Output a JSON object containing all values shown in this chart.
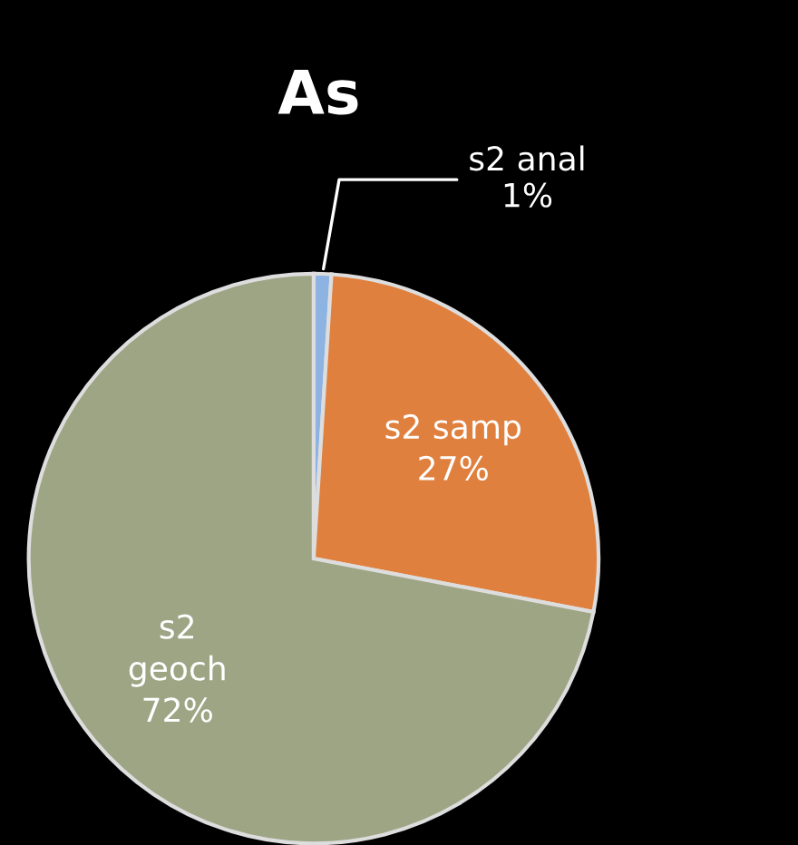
{
  "chart_data": {
    "type": "pie",
    "title": "As",
    "categories": [
      "s2 anal",
      "s2 samp",
      "s2\ngeoch"
    ],
    "values": [
      1,
      27,
      72
    ],
    "colors": [
      "#8db3e2",
      "#e0803f",
      "#9ea585"
    ],
    "value_labels": [
      "1%",
      "27%",
      "72%"
    ],
    "legend": false
  }
}
